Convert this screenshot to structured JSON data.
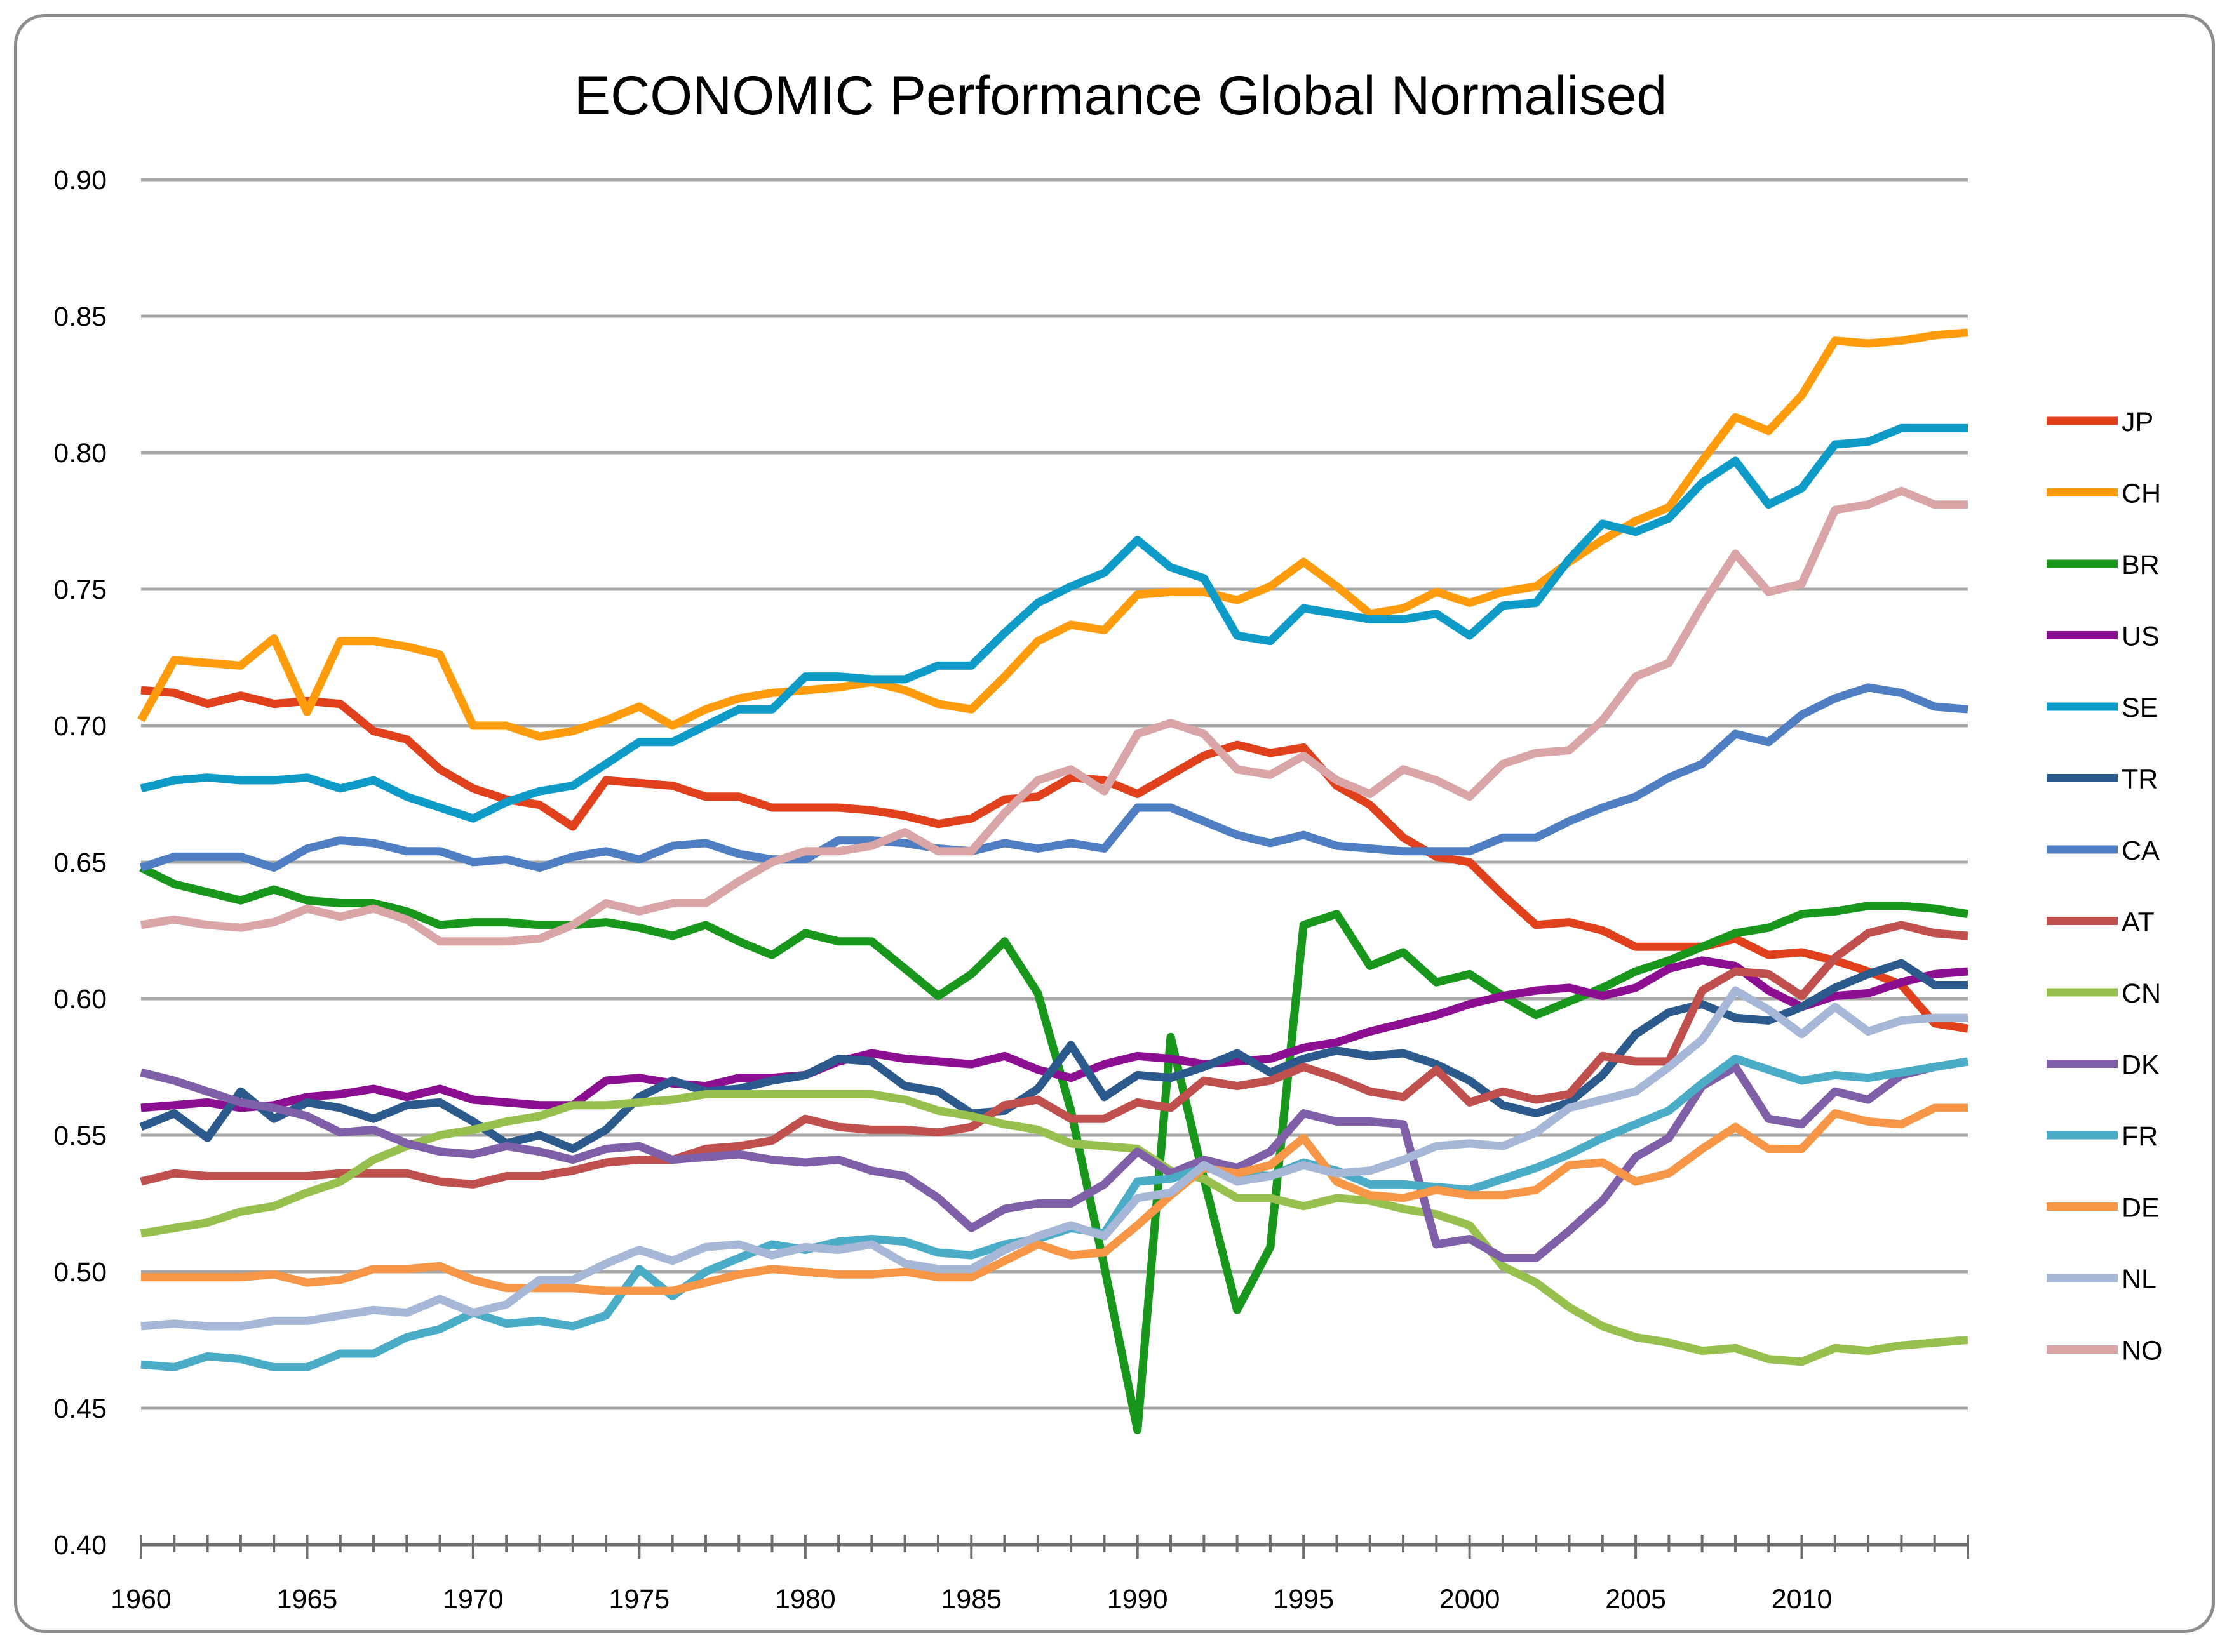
{
  "chart_data": {
    "type": "line",
    "title": "ECONOMIC Performance Global Normalised",
    "xlabel": "",
    "ylabel": "",
    "xlim": [
      1960,
      2015
    ],
    "ylim": [
      0.4,
      0.9
    ],
    "grid": true,
    "legend_position": "right",
    "x_ticks": [
      "1960",
      "1965",
      "1970",
      "1975",
      "1980",
      "1985",
      "1990",
      "1995",
      "2000",
      "2005",
      "2010"
    ],
    "y_ticks": [
      "0.40",
      "0.45",
      "0.50",
      "0.55",
      "0.60",
      "0.65",
      "0.70",
      "0.75",
      "0.80",
      "0.85",
      "0.90"
    ],
    "x": [
      1960,
      1961,
      1962,
      1963,
      1964,
      1965,
      1966,
      1967,
      1968,
      1969,
      1970,
      1971,
      1972,
      1973,
      1974,
      1975,
      1976,
      1977,
      1978,
      1979,
      1980,
      1981,
      1982,
      1983,
      1984,
      1985,
      1986,
      1987,
      1988,
      1989,
      1990,
      1991,
      1992,
      1993,
      1994,
      1995,
      1996,
      1997,
      1998,
      1999,
      2000,
      2001,
      2002,
      2003,
      2004,
      2005,
      2006,
      2007,
      2008,
      2009,
      2010,
      2011,
      2012,
      2013,
      2014,
      2015
    ],
    "series": [
      {
        "name": "JP",
        "color": "#e0401c",
        "values": [
          0.713,
          0.712,
          0.708,
          0.711,
          0.708,
          0.709,
          0.708,
          0.698,
          0.695,
          0.684,
          0.677,
          0.673,
          0.671,
          0.663,
          0.68,
          0.679,
          0.678,
          0.674,
          0.674,
          0.67,
          0.67,
          0.67,
          0.669,
          0.667,
          0.664,
          0.666,
          0.673,
          0.674,
          0.681,
          0.68,
          0.675,
          0.682,
          0.689,
          0.693,
          0.69,
          0.692,
          0.678,
          0.671,
          0.659,
          0.652,
          0.65,
          0.638,
          0.627,
          0.628,
          0.625,
          0.619,
          0.619,
          0.619,
          0.622,
          0.616,
          0.617,
          0.614,
          0.61,
          0.605,
          0.591,
          0.589
        ]
      },
      {
        "name": "CH",
        "color": "#ff9c0e",
        "values": [
          0.702,
          0.724,
          0.723,
          0.722,
          0.732,
          0.705,
          0.731,
          0.731,
          0.729,
          0.726,
          0.7,
          0.7,
          0.696,
          0.698,
          0.702,
          0.707,
          0.7,
          0.706,
          0.71,
          0.712,
          0.713,
          0.714,
          0.716,
          0.713,
          0.708,
          0.706,
          0.718,
          0.731,
          0.737,
          0.735,
          0.748,
          0.749,
          0.749,
          0.746,
          0.751,
          0.76,
          0.751,
          0.741,
          0.743,
          0.749,
          0.745,
          0.749,
          0.751,
          0.76,
          0.768,
          0.775,
          0.78,
          0.797,
          0.813,
          0.808,
          0.821,
          0.841,
          0.84,
          0.841,
          0.843,
          0.844
        ]
      },
      {
        "name": "BR",
        "color": "#19961c",
        "values": [
          0.648,
          0.642,
          0.639,
          0.636,
          0.64,
          0.636,
          0.635,
          0.635,
          0.632,
          0.627,
          0.628,
          0.628,
          0.627,
          0.627,
          0.628,
          0.626,
          0.623,
          0.627,
          0.621,
          0.616,
          0.624,
          0.621,
          0.621,
          0.611,
          0.601,
          0.609,
          0.621,
          0.602,
          0.559,
          0.502,
          0.442,
          0.586,
          0.534,
          0.486,
          0.509,
          0.627,
          0.631,
          0.612,
          0.617,
          0.606,
          0.609,
          0.601,
          0.594,
          0.599,
          0.604,
          0.61,
          0.614,
          0.619,
          0.624,
          0.626,
          0.631,
          0.632,
          0.634,
          0.634,
          0.633,
          0.631
        ]
      },
      {
        "name": "US",
        "color": "#8c0f91",
        "values": [
          0.56,
          0.561,
          0.562,
          0.56,
          0.561,
          0.564,
          0.565,
          0.567,
          0.564,
          0.567,
          0.563,
          0.562,
          0.561,
          0.561,
          0.57,
          0.571,
          0.569,
          0.568,
          0.571,
          0.571,
          0.572,
          0.577,
          0.58,
          0.578,
          0.577,
          0.576,
          0.579,
          0.574,
          0.571,
          0.576,
          0.579,
          0.578,
          0.576,
          0.577,
          0.578,
          0.582,
          0.584,
          0.588,
          0.591,
          0.594,
          0.598,
          0.601,
          0.603,
          0.604,
          0.601,
          0.604,
          0.611,
          0.614,
          0.612,
          0.603,
          0.597,
          0.601,
          0.602,
          0.606,
          0.609,
          0.61
        ]
      },
      {
        "name": "SE",
        "color": "#0e9bc8",
        "values": [
          0.677,
          0.68,
          0.681,
          0.68,
          0.68,
          0.681,
          0.677,
          0.68,
          0.674,
          0.67,
          0.666,
          0.672,
          0.676,
          0.678,
          0.686,
          0.694,
          0.694,
          0.7,
          0.706,
          0.706,
          0.718,
          0.718,
          0.717,
          0.717,
          0.722,
          0.722,
          0.734,
          0.745,
          0.751,
          0.756,
          0.768,
          0.758,
          0.754,
          0.733,
          0.731,
          0.743,
          0.741,
          0.739,
          0.739,
          0.741,
          0.733,
          0.744,
          0.745,
          0.761,
          0.774,
          0.771,
          0.776,
          0.789,
          0.797,
          0.781,
          0.787,
          0.803,
          0.804,
          0.809,
          0.809,
          0.809
        ]
      },
      {
        "name": "TR",
        "color": "#2c5a8c",
        "values": [
          0.553,
          0.558,
          0.549,
          0.566,
          0.556,
          0.562,
          0.56,
          0.556,
          0.561,
          0.562,
          0.555,
          0.547,
          0.55,
          0.545,
          0.552,
          0.564,
          0.57,
          0.566,
          0.567,
          0.57,
          0.572,
          0.578,
          0.577,
          0.568,
          0.566,
          0.558,
          0.559,
          0.567,
          0.583,
          0.564,
          0.572,
          0.571,
          0.575,
          0.58,
          0.573,
          0.578,
          0.581,
          0.579,
          0.58,
          0.576,
          0.57,
          0.561,
          0.558,
          0.562,
          0.572,
          0.587,
          0.595,
          0.598,
          0.593,
          0.592,
          0.597,
          0.604,
          0.609,
          0.613,
          0.605,
          0.605
        ]
      },
      {
        "name": "CA",
        "color": "#4f7fc2",
        "values": [
          0.648,
          0.652,
          0.652,
          0.652,
          0.648,
          0.655,
          0.658,
          0.657,
          0.654,
          0.654,
          0.65,
          0.651,
          0.648,
          0.652,
          0.654,
          0.651,
          0.656,
          0.657,
          0.653,
          0.651,
          0.651,
          0.658,
          0.658,
          0.657,
          0.655,
          0.654,
          0.657,
          0.655,
          0.657,
          0.655,
          0.67,
          0.67,
          0.665,
          0.66,
          0.657,
          0.66,
          0.656,
          0.655,
          0.654,
          0.654,
          0.654,
          0.659,
          0.659,
          0.665,
          0.67,
          0.674,
          0.681,
          0.686,
          0.697,
          0.694,
          0.704,
          0.71,
          0.714,
          0.712,
          0.707,
          0.706
        ]
      },
      {
        "name": "AT",
        "color": "#c0504d",
        "values": [
          0.533,
          0.536,
          0.535,
          0.535,
          0.535,
          0.535,
          0.536,
          0.536,
          0.536,
          0.533,
          0.532,
          0.535,
          0.535,
          0.537,
          0.54,
          0.541,
          0.541,
          0.545,
          0.546,
          0.548,
          0.556,
          0.553,
          0.552,
          0.552,
          0.551,
          0.553,
          0.561,
          0.563,
          0.556,
          0.556,
          0.562,
          0.56,
          0.57,
          0.568,
          0.57,
          0.575,
          0.571,
          0.566,
          0.564,
          0.574,
          0.562,
          0.566,
          0.563,
          0.565,
          0.579,
          0.577,
          0.577,
          0.603,
          0.61,
          0.609,
          0.601,
          0.615,
          0.624,
          0.627,
          0.624,
          0.623
        ]
      },
      {
        "name": "CN",
        "color": "#97c04f",
        "values": [
          0.514,
          0.516,
          0.518,
          0.522,
          0.524,
          0.529,
          0.533,
          0.541,
          0.546,
          0.55,
          0.552,
          0.555,
          0.557,
          0.561,
          0.561,
          0.562,
          0.563,
          0.565,
          0.565,
          0.565,
          0.565,
          0.565,
          0.565,
          0.563,
          0.559,
          0.557,
          0.554,
          0.552,
          0.547,
          0.546,
          0.545,
          0.537,
          0.534,
          0.527,
          0.527,
          0.524,
          0.527,
          0.526,
          0.523,
          0.521,
          0.517,
          0.502,
          0.496,
          0.487,
          0.48,
          0.476,
          0.474,
          0.471,
          0.472,
          0.468,
          0.467,
          0.472,
          0.471,
          0.473,
          0.474,
          0.475
        ]
      },
      {
        "name": "DK",
        "color": "#7f5fa8",
        "values": [
          0.573,
          0.57,
          0.566,
          0.562,
          0.56,
          0.557,
          0.551,
          0.552,
          0.547,
          0.544,
          0.543,
          0.546,
          0.544,
          0.541,
          0.545,
          0.546,
          0.541,
          0.542,
          0.543,
          0.541,
          0.54,
          0.541,
          0.537,
          0.535,
          0.527,
          0.516,
          0.523,
          0.525,
          0.525,
          0.532,
          0.544,
          0.536,
          0.541,
          0.538,
          0.544,
          0.558,
          0.555,
          0.555,
          0.554,
          0.51,
          0.512,
          0.505,
          0.505,
          0.515,
          0.526,
          0.542,
          0.549,
          0.568,
          0.575,
          0.556,
          0.554,
          0.566,
          0.563,
          0.572,
          0.575,
          0.577
        ]
      },
      {
        "name": "FR",
        "color": "#4aacc6",
        "values": [
          0.466,
          0.465,
          0.469,
          0.468,
          0.465,
          0.465,
          0.47,
          0.47,
          0.476,
          0.479,
          0.485,
          0.481,
          0.482,
          0.48,
          0.484,
          0.501,
          0.491,
          0.5,
          0.505,
          0.51,
          0.508,
          0.511,
          0.512,
          0.511,
          0.507,
          0.506,
          0.51,
          0.512,
          0.516,
          0.514,
          0.533,
          0.534,
          0.538,
          0.536,
          0.535,
          0.54,
          0.537,
          0.532,
          0.532,
          0.531,
          0.53,
          0.534,
          0.538,
          0.543,
          0.549,
          0.554,
          0.559,
          0.569,
          0.578,
          0.574,
          0.57,
          0.572,
          0.571,
          0.573,
          0.575,
          0.577
        ]
      },
      {
        "name": "DE",
        "color": "#f79646",
        "values": [
          0.498,
          0.498,
          0.498,
          0.498,
          0.499,
          0.496,
          0.497,
          0.501,
          0.501,
          0.502,
          0.497,
          0.494,
          0.494,
          0.494,
          0.493,
          0.493,
          0.493,
          0.496,
          0.499,
          0.501,
          0.5,
          0.499,
          0.499,
          0.5,
          0.498,
          0.498,
          0.504,
          0.51,
          0.506,
          0.507,
          0.517,
          0.528,
          0.538,
          0.536,
          0.539,
          0.549,
          0.533,
          0.528,
          0.527,
          0.53,
          0.528,
          0.528,
          0.53,
          0.539,
          0.54,
          0.533,
          0.536,
          0.545,
          0.553,
          0.545,
          0.545,
          0.558,
          0.555,
          0.554,
          0.56,
          0.56
        ]
      },
      {
        "name": "NL",
        "color": "#a6b7d8",
        "values": [
          0.48,
          0.481,
          0.48,
          0.48,
          0.482,
          0.482,
          0.484,
          0.486,
          0.485,
          0.49,
          0.485,
          0.488,
          0.497,
          0.497,
          0.503,
          0.508,
          0.504,
          0.509,
          0.51,
          0.506,
          0.509,
          0.508,
          0.51,
          0.503,
          0.501,
          0.501,
          0.508,
          0.513,
          0.517,
          0.513,
          0.527,
          0.529,
          0.539,
          0.533,
          0.535,
          0.539,
          0.536,
          0.537,
          0.541,
          0.546,
          0.547,
          0.546,
          0.551,
          0.56,
          0.563,
          0.566,
          0.575,
          0.585,
          0.603,
          0.596,
          0.587,
          0.597,
          0.588,
          0.592,
          0.593,
          0.593
        ]
      },
      {
        "name": "NO",
        "color": "#d9a5a6",
        "values": [
          0.627,
          0.629,
          0.627,
          0.626,
          0.628,
          0.633,
          0.63,
          0.633,
          0.629,
          0.621,
          0.621,
          0.621,
          0.622,
          0.627,
          0.635,
          0.632,
          0.635,
          0.635,
          0.643,
          0.65,
          0.654,
          0.654,
          0.656,
          0.661,
          0.654,
          0.654,
          0.668,
          0.68,
          0.684,
          0.676,
          0.697,
          0.701,
          0.697,
          0.684,
          0.682,
          0.689,
          0.68,
          0.675,
          0.684,
          0.68,
          0.674,
          0.686,
          0.69,
          0.691,
          0.702,
          0.718,
          0.723,
          0.744,
          0.763,
          0.749,
          0.752,
          0.779,
          0.781,
          0.786,
          0.781,
          0.781
        ]
      }
    ]
  }
}
